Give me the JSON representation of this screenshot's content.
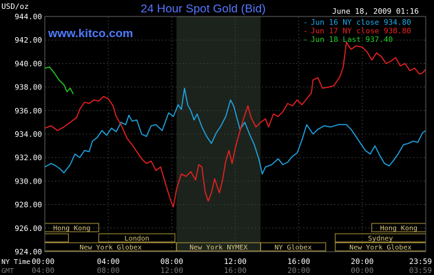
{
  "colors": {
    "background": "#000000",
    "grid": "#3a3a3a",
    "overnight_shade": "#1c231c",
    "text": "#ffffff",
    "title": "#5577ff",
    "site": "#4f7cff",
    "session_border": "#b49b3c",
    "session_text": "#d8c780"
  },
  "header": {
    "unit": "USD/oz",
    "site": "www.kitco.com",
    "timestamp": "June 18, 2009 01:16"
  },
  "footer": {
    "ny_time_label": "NY Time",
    "gmt_label": "GMT"
  },
  "sessions": [
    {
      "row": 0,
      "label": "Hong Kong"
    },
    {
      "row": 0,
      "label": "Hong Kong"
    },
    {
      "row": 1,
      "label": "London"
    },
    {
      "row": 1,
      "label": "Sydney"
    },
    {
      "row": 2,
      "label": "New York Globex"
    },
    {
      "row": 2,
      "label": "New York NYMEX"
    },
    {
      "row": 2,
      "label": "NY Globex"
    },
    {
      "row": 2,
      "label": "New York Globex"
    }
  ],
  "chart_data": {
    "type": "line",
    "title": "24 Hour Spot Gold (Bid)",
    "ylabel": "USD/oz",
    "ylim": [
      924,
      944
    ],
    "xlim": [
      0,
      24
    ],
    "y_ticks": [
      "944.00",
      "942.00",
      "940.00",
      "938.00",
      "936.00",
      "934.00",
      "932.00",
      "930.00",
      "928.00",
      "926.00",
      "924.00"
    ],
    "x_ticks_ny": [
      "00:00",
      "04:00",
      "08:00",
      "12:00",
      "16:00",
      "20:00",
      "23:59"
    ],
    "x_ticks_gmt": [
      "04:00",
      "08:00",
      "12:00",
      "16:00",
      "20:00",
      "00:00",
      "03:59"
    ],
    "grid": true,
    "legend_position": "top-right",
    "overnight_shading_hours": [
      8.3,
      13.6
    ],
    "series": [
      {
        "name": "Jun 16 NY close 934.80",
        "color": "#1fa8e8",
        "points": [
          [
            0,
            931.2
          ],
          [
            0.4,
            931.5
          ],
          [
            0.7,
            931.3
          ],
          [
            1.0,
            931.0
          ],
          [
            1.2,
            930.7
          ],
          [
            1.6,
            931.4
          ],
          [
            1.9,
            932.3
          ],
          [
            2.2,
            932.0
          ],
          [
            2.5,
            932.6
          ],
          [
            2.8,
            932.5
          ],
          [
            3.0,
            933.4
          ],
          [
            3.3,
            933.7
          ],
          [
            3.6,
            934.3
          ],
          [
            3.9,
            933.9
          ],
          [
            4.2,
            934.5
          ],
          [
            4.5,
            934.2
          ],
          [
            4.8,
            935.0
          ],
          [
            5.1,
            934.8
          ],
          [
            5.3,
            935.6
          ],
          [
            5.5,
            935.1
          ],
          [
            5.8,
            935.2
          ],
          [
            6.1,
            934.0
          ],
          [
            6.4,
            933.8
          ],
          [
            6.7,
            934.7
          ],
          [
            7.0,
            934.8
          ],
          [
            7.4,
            934.3
          ],
          [
            7.8,
            935.8
          ],
          [
            8.1,
            935.5
          ],
          [
            8.4,
            936.5
          ],
          [
            8.6,
            936.1
          ],
          [
            8.8,
            937.9
          ],
          [
            9.0,
            936.5
          ],
          [
            9.2,
            936.0
          ],
          [
            9.4,
            935.2
          ],
          [
            9.6,
            935.7
          ],
          [
            9.9,
            934.6
          ],
          [
            10.2,
            933.8
          ],
          [
            10.5,
            933.2
          ],
          [
            10.8,
            934.1
          ],
          [
            11.1,
            934.7
          ],
          [
            11.4,
            935.5
          ],
          [
            11.7,
            936.9
          ],
          [
            11.9,
            936.4
          ],
          [
            12.1,
            935.4
          ],
          [
            12.3,
            934.4
          ],
          [
            12.6,
            935.0
          ],
          [
            12.9,
            934.0
          ],
          [
            13.2,
            933.1
          ],
          [
            13.5,
            931.8
          ],
          [
            13.7,
            930.6
          ],
          [
            13.9,
            931.2
          ],
          [
            14.3,
            931.4
          ],
          [
            14.7,
            931.9
          ],
          [
            15.0,
            931.4
          ],
          [
            15.3,
            931.6
          ],
          [
            15.6,
            932.1
          ],
          [
            15.9,
            932.4
          ],
          [
            16.2,
            933.5
          ],
          [
            16.5,
            934.8
          ],
          [
            16.9,
            934.0
          ],
          [
            17.2,
            934.4
          ],
          [
            17.6,
            934.7
          ],
          [
            18.0,
            934.6
          ],
          [
            18.5,
            934.8
          ],
          [
            19.0,
            934.8
          ],
          [
            19.3,
            934.4
          ],
          [
            19.6,
            933.8
          ],
          [
            19.9,
            933.2
          ],
          [
            20.2,
            932.6
          ],
          [
            20.5,
            932.3
          ],
          [
            20.8,
            933.0
          ],
          [
            21.1,
            932.2
          ],
          [
            21.4,
            931.5
          ],
          [
            21.7,
            931.3
          ],
          [
            22.0,
            931.8
          ],
          [
            22.3,
            932.4
          ],
          [
            22.6,
            933.1
          ],
          [
            22.9,
            933.2
          ],
          [
            23.2,
            933.4
          ],
          [
            23.5,
            933.3
          ],
          [
            23.8,
            934.1
          ],
          [
            24.0,
            934.3
          ]
        ]
      },
      {
        "name": "Jun 17 NY close 938.80",
        "color": "#ee2222",
        "points": [
          [
            0,
            934.5
          ],
          [
            0.4,
            934.7
          ],
          [
            0.8,
            934.3
          ],
          [
            1.2,
            934.6
          ],
          [
            1.6,
            935.0
          ],
          [
            2.0,
            935.4
          ],
          [
            2.2,
            936.1
          ],
          [
            2.5,
            936.7
          ],
          [
            2.8,
            936.6
          ],
          [
            3.1,
            936.9
          ],
          [
            3.4,
            936.8
          ],
          [
            3.7,
            937.2
          ],
          [
            4.0,
            937.0
          ],
          [
            4.3,
            936.4
          ],
          [
            4.5,
            935.5
          ],
          [
            4.8,
            934.8
          ],
          [
            5.0,
            934.2
          ],
          [
            5.2,
            933.6
          ],
          [
            5.5,
            933.1
          ],
          [
            5.8,
            932.5
          ],
          [
            6.1,
            931.9
          ],
          [
            6.4,
            931.5
          ],
          [
            6.7,
            931.7
          ],
          [
            7.0,
            930.9
          ],
          [
            7.3,
            931.2
          ],
          [
            7.6,
            929.8
          ],
          [
            7.9,
            928.5
          ],
          [
            8.1,
            927.8
          ],
          [
            8.3,
            929.3
          ],
          [
            8.6,
            930.6
          ],
          [
            8.9,
            930.4
          ],
          [
            9.2,
            930.8
          ],
          [
            9.5,
            930.1
          ],
          [
            9.7,
            931.4
          ],
          [
            9.9,
            931.2
          ],
          [
            10.1,
            929.1
          ],
          [
            10.3,
            928.3
          ],
          [
            10.5,
            929.0
          ],
          [
            10.7,
            930.2
          ],
          [
            11.0,
            929.0
          ],
          [
            11.2,
            930.1
          ],
          [
            11.4,
            931.7
          ],
          [
            11.6,
            932.6
          ],
          [
            11.8,
            931.5
          ],
          [
            12.0,
            932.8
          ],
          [
            12.2,
            933.8
          ],
          [
            12.5,
            935.2
          ],
          [
            12.8,
            936.4
          ],
          [
            13.0,
            935.4
          ],
          [
            13.3,
            934.6
          ],
          [
            13.6,
            935.0
          ],
          [
            13.9,
            935.3
          ],
          [
            14.1,
            934.6
          ],
          [
            14.4,
            935.7
          ],
          [
            14.7,
            935.5
          ],
          [
            15.0,
            935.9
          ],
          [
            15.3,
            936.6
          ],
          [
            15.6,
            936.4
          ],
          [
            15.9,
            936.9
          ],
          [
            16.2,
            936.5
          ],
          [
            16.5,
            937.0
          ],
          [
            16.8,
            937.5
          ],
          [
            16.9,
            938.6
          ],
          [
            17.2,
            938.8
          ],
          [
            17.5,
            937.9
          ],
          [
            17.9,
            938.0
          ],
          [
            18.2,
            938.1
          ],
          [
            18.6,
            938.9
          ],
          [
            18.8,
            939.7
          ],
          [
            19.0,
            941.8
          ],
          [
            19.3,
            941.2
          ],
          [
            19.6,
            941.5
          ],
          [
            20.0,
            941.4
          ],
          [
            20.3,
            941.0
          ],
          [
            20.6,
            940.3
          ],
          [
            20.9,
            940.9
          ],
          [
            21.2,
            940.6
          ],
          [
            21.5,
            940.0
          ],
          [
            21.8,
            940.2
          ],
          [
            22.1,
            940.5
          ],
          [
            22.4,
            939.8
          ],
          [
            22.7,
            940.0
          ],
          [
            23.0,
            939.4
          ],
          [
            23.3,
            939.6
          ],
          [
            23.6,
            939.1
          ],
          [
            23.8,
            939.2
          ],
          [
            24.0,
            939.5
          ]
        ]
      },
      {
        "name": "Jun 18 Last 937.40",
        "color": "#22cc22",
        "points": [
          [
            0,
            939.6
          ],
          [
            0.3,
            939.7
          ],
          [
            0.6,
            939.2
          ],
          [
            0.9,
            938.6
          ],
          [
            1.2,
            938.2
          ],
          [
            1.4,
            937.6
          ],
          [
            1.6,
            937.9
          ],
          [
            1.8,
            937.4
          ]
        ]
      }
    ]
  }
}
